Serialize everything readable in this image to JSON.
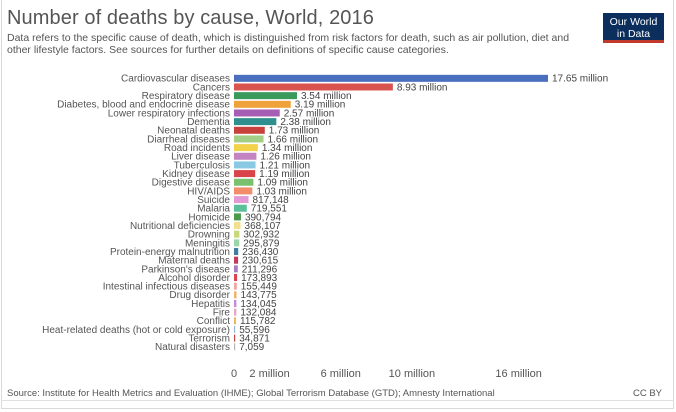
{
  "header": {
    "title": "Number of deaths by cause, World, 2016",
    "subtitle": "Data refers to the specific cause of death, which is distinguished from risk factors for death, such as air pollution, diet and other lifestyle factors. See sources for further details on definitions of specific cause categories."
  },
  "logo": {
    "line1": "Our World",
    "line2": "in Data",
    "bg": "#0b2e5d",
    "accent": "#c0392b"
  },
  "footer": {
    "source": "Source: Institute for Health Metrics and Evaluation (IHME); Global Terrorism Database (GTD); Amnesty International",
    "license": "CC BY"
  },
  "chart_data": {
    "type": "bar",
    "orientation": "horizontal",
    "grid": false,
    "xlim": [
      0,
      17650000
    ],
    "xticks": [
      0,
      2000000,
      6000000,
      10000000,
      16000000
    ],
    "xtick_labels": [
      "0",
      "2 million",
      "6 million",
      "10 million",
      "16 million"
    ],
    "categories": [
      "Cardiovascular diseases",
      "Cancers",
      "Respiratory disease",
      "Diabetes, blood and endocrine disease",
      "Lower respiratory infections",
      "Dementia",
      "Neonatal deaths",
      "Diarrheal diseases",
      "Road incidents",
      "Liver disease",
      "Tuberculosis",
      "Kidney disease",
      "Digestive disease",
      "HIV/AIDS",
      "Suicide",
      "Malaria",
      "Homicide",
      "Nutritional deficiencies",
      "Drowning",
      "Meningitis",
      "Protein-energy malnutrition",
      "Maternal deaths",
      "Parkinson's disease",
      "Alcohol disorder",
      "Intestinal infectious diseases",
      "Drug disorder",
      "Hepatitis",
      "Fire",
      "Conflict",
      "Heat-related deaths (hot or cold exposure)",
      "Terrorism",
      "Natural disasters"
    ],
    "values": [
      17650000,
      8930000,
      3540000,
      3190000,
      2570000,
      2380000,
      1730000,
      1660000,
      1340000,
      1260000,
      1210000,
      1190000,
      1090000,
      1030000,
      817148,
      719551,
      390794,
      368107,
      302932,
      295879,
      236430,
      230615,
      211296,
      173893,
      155449,
      143775,
      134045,
      132084,
      115782,
      55596,
      34871,
      7059
    ],
    "value_labels": [
      "17.65 million",
      "8.93 million",
      "3.54 million",
      "3.19 million",
      "2.57 million",
      "2.38 million",
      "1.73 million",
      "1.66 million",
      "1.34 million",
      "1.26 million",
      "1.21 million",
      "1.19 million",
      "1.09 million",
      "1.03 million",
      "817,148",
      "719,551",
      "390,794",
      "368,107",
      "302,932",
      "295,879",
      "236,430",
      "230,615",
      "211,296",
      "173,893",
      "155,449",
      "143,775",
      "134,045",
      "132,084",
      "115,782",
      "55,596",
      "34,871",
      "7,059"
    ],
    "colors": [
      "#4a6fbf",
      "#d9534f",
      "#3a9a5c",
      "#f0a23a",
      "#a65eb5",
      "#2f8f8f",
      "#c9413c",
      "#a2cf85",
      "#f2d24b",
      "#c384c1",
      "#89c9e3",
      "#d9434a",
      "#7ac16f",
      "#f28c6b",
      "#e39ad4",
      "#5bbf9a",
      "#4a9a4a",
      "#f2e08a",
      "#c7d97c",
      "#9dd4a8",
      "#3d7fa3",
      "#c23b5a",
      "#a87bc2",
      "#d9444e",
      "#f2a7a0",
      "#f2b46b",
      "#c48bd6",
      "#e3a8c2",
      "#e6b86a",
      "#9db3d9",
      "#c2443f",
      "#b5b5b5"
    ]
  }
}
